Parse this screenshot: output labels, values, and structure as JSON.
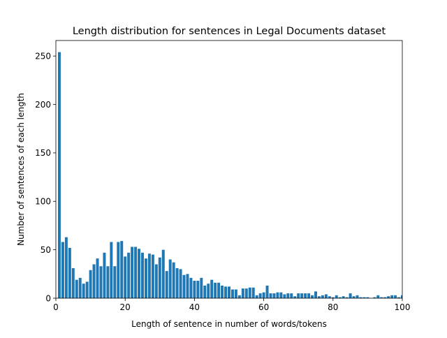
{
  "chart_data": {
    "type": "bar",
    "title": "Length distribution for sentences in Legal Documents dataset",
    "xlabel": "Length of sentence in number of words/tokens",
    "ylabel": "Number of sentences of each length",
    "xlim": [
      0,
      100
    ],
    "ylim": [
      0,
      266
    ],
    "xticks": [
      0,
      20,
      40,
      60,
      80,
      100
    ],
    "yticks": [
      0,
      50,
      100,
      150,
      200,
      250
    ],
    "grid": false,
    "legend": "none",
    "bar_color": "#1f77b4",
    "x": [
      1,
      2,
      3,
      4,
      5,
      6,
      7,
      8,
      9,
      10,
      11,
      12,
      13,
      14,
      15,
      16,
      17,
      18,
      19,
      20,
      21,
      22,
      23,
      24,
      25,
      26,
      27,
      28,
      29,
      30,
      31,
      32,
      33,
      34,
      35,
      36,
      37,
      38,
      39,
      40,
      41,
      42,
      43,
      44,
      45,
      46,
      47,
      48,
      49,
      50,
      51,
      52,
      53,
      54,
      55,
      56,
      57,
      58,
      59,
      60,
      61,
      62,
      63,
      64,
      65,
      66,
      67,
      68,
      69,
      70,
      71,
      72,
      73,
      74,
      75,
      76,
      77,
      78,
      79,
      80,
      81,
      82,
      83,
      84,
      85,
      86,
      87,
      88,
      89,
      90,
      91,
      92,
      93,
      94,
      95,
      96,
      97,
      98,
      99,
      100
    ],
    "values": [
      254,
      58,
      63,
      52,
      31,
      19,
      21,
      15,
      17,
      29,
      35,
      41,
      33,
      47,
      33,
      58,
      33,
      58,
      59,
      43,
      47,
      53,
      53,
      51,
      47,
      41,
      46,
      45,
      35,
      42,
      50,
      28,
      40,
      37,
      31,
      30,
      24,
      25,
      21,
      18,
      18,
      21,
      13,
      15,
      19,
      16,
      16,
      13,
      12,
      12,
      9,
      9,
      3,
      10,
      10,
      11,
      11,
      3,
      5,
      6,
      13,
      5,
      5,
      6,
      6,
      4,
      5,
      5,
      2,
      5,
      5,
      5,
      5,
      3,
      7,
      2,
      3,
      4,
      2,
      1,
      3,
      1,
      2,
      1,
      5,
      2,
      3,
      1,
      1,
      1,
      0,
      1,
      3,
      1,
      1,
      2,
      3,
      3,
      1,
      3
    ]
  }
}
